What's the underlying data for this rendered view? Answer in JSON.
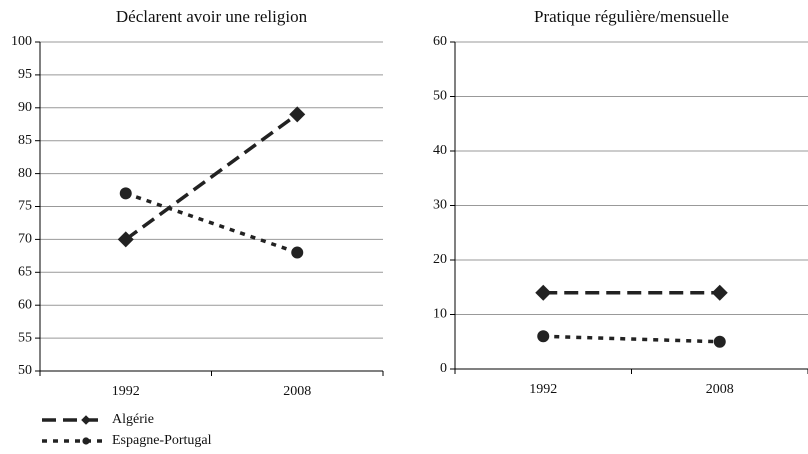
{
  "chart_data": [
    {
      "type": "line",
      "title": "Déclarent avoir une religion",
      "categories": [
        "1992",
        "2008"
      ],
      "series": [
        {
          "name": "Algérie",
          "color": "#222222",
          "marker": "diamond",
          "line_style": "dashed",
          "values": [
            70,
            89
          ]
        },
        {
          "name": "Espagne-Portugal",
          "color": "#222222",
          "marker": "circle",
          "line_style": "dotted",
          "values": [
            77,
            68
          ]
        }
      ],
      "ylim": [
        50,
        100
      ],
      "yticks": [
        50,
        55,
        60,
        65,
        70,
        75,
        80,
        85,
        90,
        95,
        100
      ],
      "grid": true
    },
    {
      "type": "line",
      "title": "Pratique régulière/mensuelle",
      "categories": [
        "1992",
        "2008"
      ],
      "series": [
        {
          "color": "#222222",
          "marker": "diamond",
          "line_style": "dashed",
          "values": [
            14,
            14
          ]
        },
        {
          "color": "#222222",
          "marker": "circle",
          "line_style": "dotted",
          "values": [
            6,
            5
          ]
        }
      ],
      "ylim": [
        0,
        60
      ],
      "yticks": [
        0,
        10,
        20,
        30,
        40,
        50,
        60
      ],
      "grid": true
    }
  ]
}
